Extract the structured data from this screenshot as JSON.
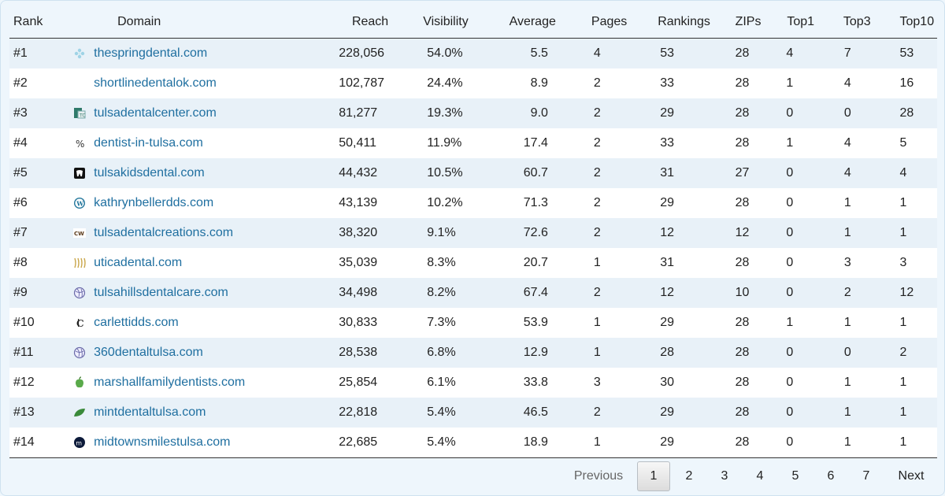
{
  "headers": [
    "Rank",
    "Domain",
    "Reach",
    "Visibility",
    "Average",
    "Pages",
    "Rankings",
    "ZIPs",
    "Top1",
    "Top3",
    "Top10"
  ],
  "rows": [
    {
      "rank": "#1",
      "domain": "thespringdental.com",
      "icon": "flower-icon",
      "reach": "228,056",
      "visibility": "54.0%",
      "average": "5.5",
      "pages": "4",
      "rankings": "53",
      "zips": "28",
      "top1": "4",
      "top3": "7",
      "top10": "53"
    },
    {
      "rank": "#2",
      "domain": "shortlinedentalok.com",
      "icon": "none",
      "reach": "102,787",
      "visibility": "24.4%",
      "average": "8.9",
      "pages": "2",
      "rankings": "33",
      "zips": "28",
      "top1": "1",
      "top3": "4",
      "top10": "16"
    },
    {
      "rank": "#3",
      "domain": "tulsadentalcenter.com",
      "icon": "tdc-logo-icon",
      "reach": "81,277",
      "visibility": "19.3%",
      "average": "9.0",
      "pages": "2",
      "rankings": "29",
      "zips": "28",
      "top1": "0",
      "top3": "0",
      "top10": "28"
    },
    {
      "rank": "#4",
      "domain": "dentist-in-tulsa.com",
      "icon": "percent-icon",
      "reach": "50,411",
      "visibility": "11.9%",
      "average": "17.4",
      "pages": "2",
      "rankings": "33",
      "zips": "28",
      "top1": "1",
      "top3": "4",
      "top10": "5"
    },
    {
      "rank": "#5",
      "domain": "tulsakidsdental.com",
      "icon": "tooth-icon",
      "reach": "44,432",
      "visibility": "10.5%",
      "average": "60.7",
      "pages": "2",
      "rankings": "31",
      "zips": "27",
      "top1": "0",
      "top3": "4",
      "top10": "4"
    },
    {
      "rank": "#6",
      "domain": "kathrynbellerdds.com",
      "icon": "wordpress-icon",
      "reach": "43,139",
      "visibility": "10.2%",
      "average": "71.3",
      "pages": "2",
      "rankings": "29",
      "zips": "28",
      "top1": "0",
      "top3": "1",
      "top10": "1"
    },
    {
      "rank": "#7",
      "domain": "tulsadentalcreations.com",
      "icon": "cw-logo-icon",
      "reach": "38,320",
      "visibility": "9.1%",
      "average": "72.6",
      "pages": "2",
      "rankings": "12",
      "zips": "12",
      "top1": "0",
      "top3": "1",
      "top10": "1"
    },
    {
      "rank": "#8",
      "domain": "uticadental.com",
      "icon": "stripes-icon",
      "reach": "35,039",
      "visibility": "8.3%",
      "average": "20.7",
      "pages": "1",
      "rankings": "31",
      "zips": "28",
      "top1": "0",
      "top3": "3",
      "top10": "3"
    },
    {
      "rank": "#9",
      "domain": "tulsahillsdentalcare.com",
      "icon": "globe-icon",
      "reach": "34,498",
      "visibility": "8.2%",
      "average": "67.4",
      "pages": "2",
      "rankings": "12",
      "zips": "10",
      "top1": "0",
      "top3": "2",
      "top10": "12"
    },
    {
      "rank": "#10",
      "domain": "carlettidds.com",
      "icon": "c-logo-icon",
      "reach": "30,833",
      "visibility": "7.3%",
      "average": "53.9",
      "pages": "1",
      "rankings": "29",
      "zips": "28",
      "top1": "1",
      "top3": "1",
      "top10": "1"
    },
    {
      "rank": "#11",
      "domain": "360dentaltulsa.com",
      "icon": "globe-icon",
      "reach": "28,538",
      "visibility": "6.8%",
      "average": "12.9",
      "pages": "1",
      "rankings": "28",
      "zips": "28",
      "top1": "0",
      "top3": "0",
      "top10": "2"
    },
    {
      "rank": "#12",
      "domain": "marshallfamilydentists.com",
      "icon": "apple-icon",
      "reach": "25,854",
      "visibility": "6.1%",
      "average": "33.8",
      "pages": "3",
      "rankings": "30",
      "zips": "28",
      "top1": "0",
      "top3": "1",
      "top10": "1"
    },
    {
      "rank": "#13",
      "domain": "mintdentaltulsa.com",
      "icon": "leaf-icon",
      "reach": "22,818",
      "visibility": "5.4%",
      "average": "46.5",
      "pages": "2",
      "rankings": "29",
      "zips": "28",
      "top1": "0",
      "top3": "1",
      "top10": "1"
    },
    {
      "rank": "#14",
      "domain": "midtownsmilestulsa.com",
      "icon": "m-logo-icon",
      "reach": "22,685",
      "visibility": "5.4%",
      "average": "18.9",
      "pages": "1",
      "rankings": "29",
      "zips": "28",
      "top1": "0",
      "top3": "1",
      "top10": "1"
    }
  ],
  "pagination": {
    "previous": "Previous",
    "pages": [
      "1",
      "2",
      "3",
      "4",
      "5",
      "6",
      "7"
    ],
    "current": "1",
    "next": "Next"
  },
  "colors": {
    "link": "#1f6fa0",
    "stripe": "#e8f1f8",
    "background": "#eef6fc"
  }
}
